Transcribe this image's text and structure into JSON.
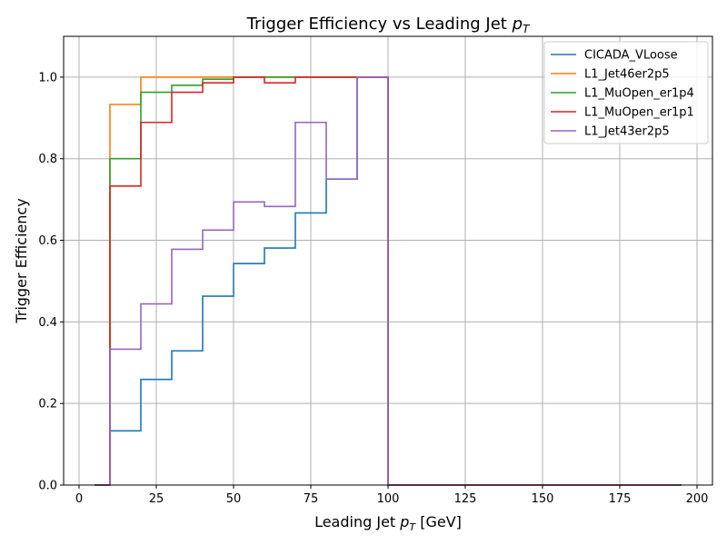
{
  "chart_data": {
    "type": "line",
    "title": "Trigger Efficiency vs Leading Jet ",
    "title_var": "p",
    "title_sub": "T",
    "xlabel": "Leading Jet ",
    "xlabel_var": "p",
    "xlabel_sub": "T",
    "xlabel_unit": " [GeV]",
    "ylabel": "Trigger Efficiency",
    "xlim": [
      -5,
      205
    ],
    "ylim": [
      0,
      1.1
    ],
    "xticks": [
      0,
      25,
      50,
      75,
      100,
      125,
      150,
      175,
      200
    ],
    "yticks": [
      0.0,
      0.2,
      0.4,
      0.6,
      0.8,
      1.0
    ],
    "ytick_labels": [
      "0.0",
      "0.2",
      "0.4",
      "0.6",
      "0.8",
      "1.0"
    ],
    "grid": true,
    "legend_position": "top-right",
    "step_style": "mid",
    "x": [
      5,
      15,
      25,
      35,
      45,
      55,
      65,
      75,
      85,
      95,
      105,
      115,
      125,
      135,
      145,
      155,
      165,
      175,
      185,
      195
    ],
    "series": [
      {
        "name": "CICADA_VLoose",
        "color": "#1f77b4",
        "values": [
          0,
          0.133,
          0.259,
          0.329,
          0.463,
          0.543,
          0.581,
          0.667,
          0.75,
          1.0,
          0,
          0,
          0,
          0,
          0,
          0,
          0,
          0,
          0,
          0
        ]
      },
      {
        "name": "L1_Jet46er2p5",
        "color": "#ff7f0e",
        "values": [
          0,
          0.933,
          1.0,
          1.0,
          1.0,
          1.0,
          1.0,
          1.0,
          1.0,
          1.0,
          0,
          0,
          0,
          0,
          0,
          0,
          0,
          0,
          0,
          0
        ]
      },
      {
        "name": "L1_MuOpen_er1p4",
        "color": "#2ca02c",
        "values": [
          0,
          0.8,
          0.963,
          0.98,
          0.995,
          1.0,
          1.0,
          1.0,
          1.0,
          1.0,
          0,
          0,
          0,
          0,
          0,
          0,
          0,
          0,
          0,
          0
        ]
      },
      {
        "name": "L1_MuOpen_er1p1",
        "color": "#d62728",
        "values": [
          0,
          0.733,
          0.889,
          0.963,
          0.986,
          1.0,
          0.986,
          1.0,
          1.0,
          1.0,
          0,
          0,
          0,
          0,
          0,
          0,
          0,
          0,
          0,
          0
        ]
      },
      {
        "name": "L1_Jet43er2p5",
        "color": "#9467bd",
        "values": [
          0,
          0.333,
          0.444,
          0.578,
          0.625,
          0.694,
          0.683,
          0.889,
          0.75,
          1.0,
          0,
          0,
          0,
          0,
          0,
          0,
          0,
          0,
          0,
          0
        ]
      }
    ]
  }
}
